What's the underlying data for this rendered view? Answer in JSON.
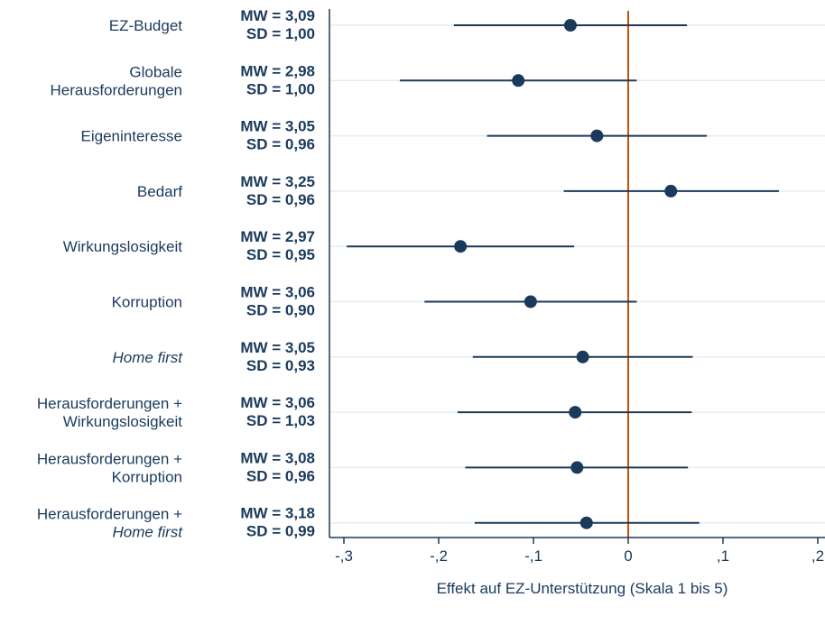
{
  "chart_data": {
    "type": "scatter",
    "subtype": "coefficient-plot",
    "xlabel": "Effekt auf EZ-Unterstützung (Skala 1 bis 5)",
    "xlim": [
      -0.31,
      0.2
    ],
    "x_ticks": [
      -0.3,
      -0.2,
      -0.1,
      0,
      0.1,
      0.2
    ],
    "x_tick_labels": [
      "-,3",
      "-,2",
      "-,1",
      "0",
      ",1",
      ",2"
    ],
    "reference_line": 0,
    "colors": {
      "point": "#1a3a5c",
      "reference": "#c8500a",
      "grid": "#e4ecf2",
      "text": "#1a3a5c"
    },
    "grid": true,
    "items": [
      {
        "label": [
          "EZ-Budget"
        ],
        "italic": [
          false
        ],
        "mw": "MW = 3,09",
        "sd": "SD = 1,00",
        "estimate": -0.061,
        "ci": [
          -0.184,
          0.062
        ]
      },
      {
        "label": [
          "Globale",
          "Herausforderungen"
        ],
        "italic": [
          false,
          false
        ],
        "mw": "MW = 2,98",
        "sd": "SD = 1,00",
        "estimate": -0.116,
        "ci": [
          -0.241,
          0.009
        ]
      },
      {
        "label": [
          "Eigeninteresse"
        ],
        "italic": [
          false
        ],
        "mw": "MW = 3,05",
        "sd": "SD = 0,96",
        "estimate": -0.033,
        "ci": [
          -0.149,
          0.083
        ]
      },
      {
        "label": [
          "Bedarf"
        ],
        "italic": [
          false
        ],
        "mw": "MW = 3,25",
        "sd": "SD = 0,96",
        "estimate": 0.045,
        "ci": [
          -0.068,
          0.159
        ]
      },
      {
        "label": [
          "Wirkungslosigkeit"
        ],
        "italic": [
          false
        ],
        "mw": "MW = 2,97",
        "sd": "SD = 0,95",
        "estimate": -0.177,
        "ci": [
          -0.297,
          -0.057
        ]
      },
      {
        "label": [
          "Korruption"
        ],
        "italic": [
          false
        ],
        "mw": "MW = 3,06",
        "sd": "SD = 0,90",
        "estimate": -0.103,
        "ci": [
          -0.215,
          0.009
        ]
      },
      {
        "label": [
          "Home first"
        ],
        "italic": [
          true
        ],
        "mw": "MW = 3,05",
        "sd": "SD = 0,93",
        "estimate": -0.048,
        "ci": [
          -0.164,
          0.068
        ]
      },
      {
        "label": [
          "Herausforderungen +",
          "Wirkungslosigkeit"
        ],
        "italic": [
          false,
          false
        ],
        "mw": "MW = 3,06",
        "sd": "SD = 1,03",
        "estimate": -0.056,
        "ci": [
          -0.18,
          0.067
        ]
      },
      {
        "label": [
          "Herausforderungen +",
          "Korruption"
        ],
        "italic": [
          false,
          false
        ],
        "mw": "MW = 3,08",
        "sd": "SD = 0,96",
        "estimate": -0.054,
        "ci": [
          -0.172,
          0.063
        ]
      },
      {
        "label": [
          "Herausforderungen +",
          "Home first"
        ],
        "italic": [
          false,
          true
        ],
        "mw": "MW = 3,18",
        "sd": "SD = 0,99",
        "estimate": -0.044,
        "ci": [
          -0.162,
          0.075
        ]
      }
    ]
  }
}
